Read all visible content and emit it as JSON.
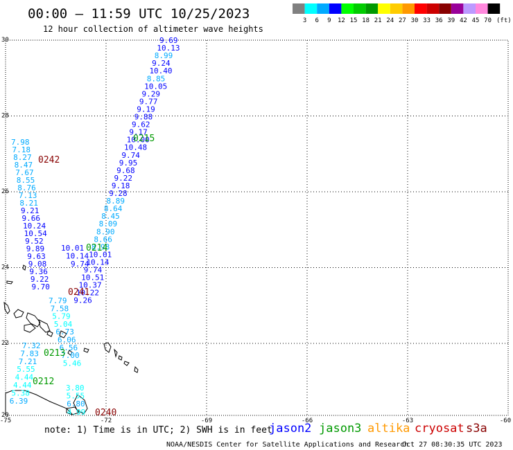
{
  "header": {
    "title": "00:00 – 11:59 UTC 10/25/2023",
    "subtitle": "12 hour collection of altimeter wave heights"
  },
  "legend": {
    "unit": "(ft)",
    "bins": [
      {
        "label": "3",
        "color": "#808080"
      },
      {
        "label": "6",
        "color": "#00ffff"
      },
      {
        "label": "9",
        "color": "#00aaff"
      },
      {
        "label": "12",
        "color": "#0000ff"
      },
      {
        "label": "15",
        "color": "#00ff00"
      },
      {
        "label": "18",
        "color": "#00cc00"
      },
      {
        "label": "21",
        "color": "#009900"
      },
      {
        "label": "24",
        "color": "#ffff00"
      },
      {
        "label": "27",
        "color": "#ffcc00"
      },
      {
        "label": "30",
        "color": "#ff9900"
      },
      {
        "label": "33",
        "color": "#ff0000"
      },
      {
        "label": "36",
        "color": "#cc0000"
      },
      {
        "label": "39",
        "color": "#880000"
      },
      {
        "label": "42",
        "color": "#990099"
      },
      {
        "label": "45",
        "color": "#bb99ff"
      },
      {
        "label": "70",
        "color": "#ff88dd"
      },
      {
        "label": "",
        "color": "#000000"
      }
    ]
  },
  "axes": {
    "lon_ticks": [
      "-75",
      "-72",
      "-69",
      "-66",
      "-63",
      "-60"
    ],
    "lat_ticks": [
      "30",
      "28",
      "26",
      "24",
      "22",
      "20"
    ]
  },
  "tracks": [
    {
      "time": "0215",
      "values": [
        "9.69",
        "10.13",
        "8.99",
        "9.24",
        "10.40",
        "8.85",
        "10.05",
        "9.29",
        "9.77",
        "9.19",
        "9.88",
        "9.62",
        "9.17",
        "10.00",
        "10.48",
        "9.74",
        "9.95",
        "9.68",
        "9.22",
        "9.18",
        "9.28",
        "8.89",
        "8.64",
        "8.45",
        "8.09",
        "8.90",
        "8.66",
        "8.98",
        "10.01",
        "10.14",
        "9.74",
        "10.51",
        "10.37",
        "10.22",
        "9.26"
      ]
    },
    {
      "time": "0214",
      "values": [
        "10.01",
        "10.14",
        "9.74"
      ]
    },
    {
      "time": "0242",
      "values": [
        "7.98",
        "7.18",
        "8.27",
        "8.47",
        "7.67",
        "8.55",
        "8.76",
        "7.13",
        "8.21",
        "9.21",
        "9.66",
        "10.24",
        "10.54",
        "9.52",
        "9.89",
        "9.63",
        "9.08",
        "9.36",
        "9.22",
        "9.70"
      ]
    },
    {
      "time": "0241",
      "values": [
        "7.79",
        "7.58",
        "5.79",
        "5.04",
        "6.73",
        "6.06",
        "6.56",
        "7.00",
        "5.46"
      ]
    },
    {
      "time": "0213",
      "values": [
        "7.32",
        "7.83",
        "7.21",
        "5.55",
        "4.44",
        "4.44",
        "5.38",
        "6.39"
      ]
    },
    {
      "time": "0212",
      "values": []
    },
    {
      "time": "0240",
      "values": [
        "3.80",
        "5.55",
        "6.80",
        "4.99"
      ]
    }
  ],
  "footer": {
    "note": "note:  1) Time is in UTC; 2) SWH is in feet",
    "satellites": [
      {
        "name": "jason2",
        "color": "#0000ff"
      },
      {
        "name": "jason3",
        "color": "#009900"
      },
      {
        "name": "altika",
        "color": "#ff9900"
      },
      {
        "name": "cryosat",
        "color": "#cc0000"
      },
      {
        "name": "s3a",
        "color": "#880000"
      }
    ],
    "credit": "NOAA/NESDIS Center for Satellite Applications and Research",
    "timestamp": "Oct 27 08:30:35 UTC 2023"
  }
}
